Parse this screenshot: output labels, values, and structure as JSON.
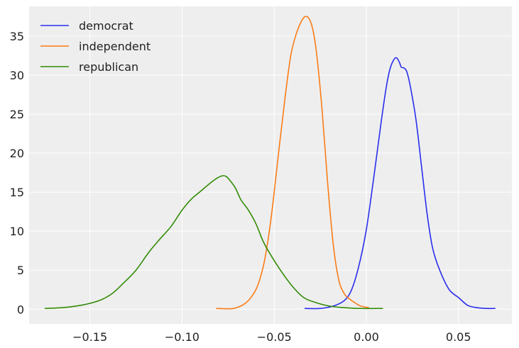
{
  "chart_data": {
    "type": "line",
    "title": "",
    "xlabel": "",
    "ylabel": "",
    "xlim": [
      -0.183,
      0.079
    ],
    "ylim": [
      -1.88,
      38.8
    ],
    "grid": true,
    "legend_position": "top-left",
    "xticks": [
      {
        "value": -0.15,
        "label": "−0.15"
      },
      {
        "value": -0.1,
        "label": "−0.10"
      },
      {
        "value": -0.05,
        "label": "−0.05"
      },
      {
        "value": 0.0,
        "label": "0.00"
      },
      {
        "value": 0.05,
        "label": "0.05"
      }
    ],
    "yticks": [
      {
        "value": 0,
        "label": "0"
      },
      {
        "value": 5,
        "label": "5"
      },
      {
        "value": 10,
        "label": "10"
      },
      {
        "value": 15,
        "label": "15"
      },
      {
        "value": 20,
        "label": "20"
      },
      {
        "value": 25,
        "label": "25"
      },
      {
        "value": 30,
        "label": "30"
      },
      {
        "value": 35,
        "label": "35"
      }
    ],
    "series": [
      {
        "name": "democrat",
        "color": "#2a2eec",
        "x": [
          -0.0335,
          -0.025,
          -0.018,
          -0.012,
          -0.008,
          -0.004,
          0.0,
          0.004,
          0.008,
          0.011,
          0.013,
          0.015,
          0.0165,
          0.018,
          0.019,
          0.0205,
          0.022,
          0.024,
          0.027,
          0.03,
          0.033,
          0.036,
          0.04,
          0.045,
          0.05,
          0.055,
          0.06,
          0.065,
          0.07
        ],
        "y": [
          0.1,
          0.1,
          0.4,
          1.1,
          2.5,
          5.6,
          10.2,
          16.8,
          23.9,
          28.7,
          30.9,
          32.0,
          32.2,
          31.6,
          31.0,
          30.9,
          30.4,
          28.4,
          24.2,
          18.2,
          12.2,
          7.8,
          4.9,
          2.5,
          1.5,
          0.5,
          0.2,
          0.1,
          0.1
        ]
      },
      {
        "name": "independent",
        "color": "#fa7c17",
        "x": [
          -0.0815,
          -0.072,
          -0.066,
          -0.062,
          -0.059,
          -0.056,
          -0.054,
          -0.052,
          -0.05,
          -0.047,
          -0.044,
          -0.041,
          -0.038,
          -0.035,
          -0.033,
          -0.031,
          -0.029,
          -0.027,
          -0.024,
          -0.021,
          -0.018,
          -0.015,
          -0.012,
          -0.009,
          -0.006,
          -0.003,
          0.0015
        ],
        "y": [
          0.1,
          0.1,
          0.7,
          1.7,
          3.0,
          5.4,
          7.9,
          11.1,
          15.0,
          21.3,
          27.3,
          32.5,
          35.3,
          37.0,
          37.5,
          37.2,
          35.8,
          32.8,
          25.5,
          16.2,
          8.4,
          3.8,
          2.0,
          1.3,
          0.8,
          0.4,
          0.2
        ]
      },
      {
        "name": "republican",
        "color": "#328c06",
        "x": [
          -0.1745,
          -0.165,
          -0.155,
          -0.145,
          -0.138,
          -0.132,
          -0.125,
          -0.118,
          -0.112,
          -0.106,
          -0.1,
          -0.095,
          -0.09,
          -0.085,
          -0.081,
          -0.078,
          -0.076,
          -0.074,
          -0.071,
          -0.068,
          -0.064,
          -0.06,
          -0.056,
          -0.052,
          -0.046,
          -0.04,
          -0.034,
          -0.028,
          -0.02,
          -0.012,
          -0.004,
          0.009
        ],
        "y": [
          0.1,
          0.2,
          0.5,
          1.1,
          2.0,
          3.3,
          5.0,
          7.3,
          9.0,
          10.6,
          12.7,
          14.1,
          15.1,
          16.1,
          16.8,
          17.1,
          17.0,
          16.5,
          15.5,
          14.0,
          12.7,
          11.0,
          8.7,
          7.0,
          4.8,
          2.9,
          1.5,
          0.9,
          0.4,
          0.2,
          0.1,
          0.1
        ]
      }
    ]
  }
}
